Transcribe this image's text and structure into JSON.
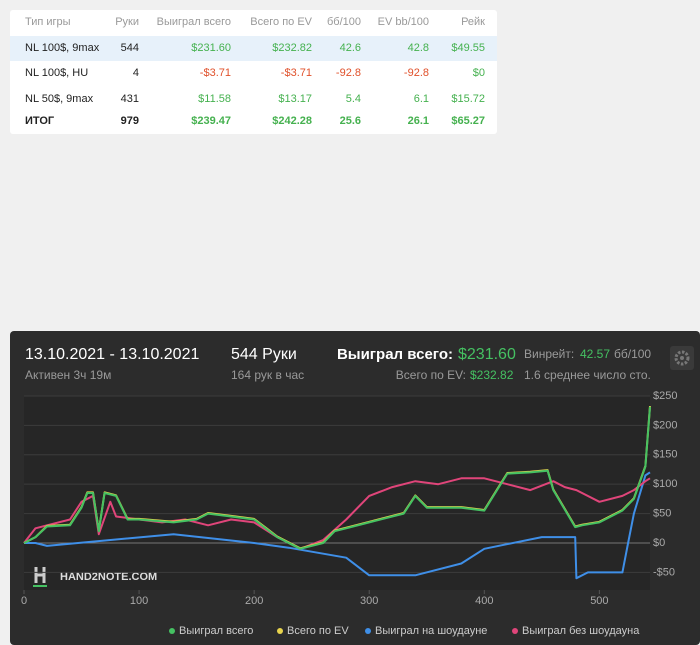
{
  "table": {
    "header": [
      "Тип игры",
      "Руки",
      "Выиграл всего",
      "Всего по EV",
      "бб/100",
      "EV bb/100",
      "Рейк"
    ],
    "rows": [
      [
        "NL 100$, 9max",
        "544",
        "$231.60",
        "$232.82",
        "42.6",
        "42.8",
        "$49.55"
      ],
      [
        "NL 100$, HU",
        "4",
        "-$3.71",
        "-$3.71",
        "-92.8",
        "-92.8",
        "$0"
      ],
      [
        "NL 50$, 9max",
        "431",
        "$11.58",
        "$13.17",
        "5.4",
        "6.1",
        "$15.72"
      ]
    ],
    "total": [
      "ИТОГ",
      "979",
      "$239.47",
      "$242.28",
      "25.6",
      "26.1",
      "$65.27"
    ]
  },
  "panel": {
    "date": "13.10.2021 - 13.10.2021",
    "active": "Активен 3ч 19м",
    "hands": "544 Руки",
    "rate": "164 рук в час",
    "won_label": "Выиграл всего:",
    "won": "$231.60",
    "ev_label": "Всего по EV:",
    "ev": "$232.82",
    "winrate_label": "Винрейт:",
    "winrate": "42.57",
    "winrate_unit": "бб/100",
    "tables": "1.6 среднее число сто.",
    "watermark": "HAND2NOTE.COM"
  },
  "chart_data": {
    "type": "line",
    "xlim": [
      0,
      544
    ],
    "ylim": [
      -80,
      250
    ],
    "xticks": [
      0,
      100,
      200,
      300,
      400,
      500
    ],
    "yticks": [
      {
        "value": -50,
        "label": "-$50"
      },
      {
        "value": 0,
        "label": "$0"
      },
      {
        "value": 50,
        "label": "$50"
      },
      {
        "value": 100,
        "label": "$100"
      },
      {
        "value": 150,
        "label": "$150"
      },
      {
        "value": 200,
        "label": "$200"
      },
      {
        "value": 250,
        "label": "$250"
      }
    ],
    "grid": true,
    "series": [
      {
        "name": "Выиграл всего",
        "color": "#45c162",
        "x": [
          0,
          10,
          20,
          40,
          50,
          55,
          60,
          65,
          70,
          80,
          90,
          100,
          130,
          150,
          160,
          180,
          200,
          210,
          220,
          240,
          260,
          270,
          280,
          300,
          330,
          340,
          350,
          380,
          400,
          420,
          440,
          455,
          460,
          479,
          485,
          500,
          520,
          530,
          540,
          544
        ],
        "values": [
          0,
          10,
          28,
          30,
          60,
          85,
          85,
          20,
          85,
          80,
          40,
          40,
          35,
          40,
          50,
          45,
          40,
          25,
          10,
          -10,
          0,
          20,
          25,
          35,
          50,
          80,
          60,
          60,
          55,
          118,
          120,
          123,
          90,
          27,
          30,
          35,
          55,
          75,
          130,
          231.6
        ]
      },
      {
        "name": "Всего по EV",
        "color": "#e8d44d",
        "x": [
          0,
          10,
          20,
          40,
          50,
          55,
          60,
          65,
          70,
          80,
          90,
          100,
          130,
          150,
          160,
          180,
          200,
          210,
          220,
          240,
          260,
          270,
          280,
          300,
          330,
          340,
          350,
          380,
          400,
          420,
          440,
          455,
          460,
          479,
          485,
          500,
          520,
          530,
          540,
          544
        ],
        "values": [
          0,
          10,
          29,
          31,
          61,
          86,
          86,
          21,
          86,
          81,
          41,
          41,
          36,
          41,
          51,
          46,
          41,
          26,
          11,
          -9,
          1,
          21,
          26,
          36,
          51,
          81,
          61,
          61,
          56,
          119,
          121,
          124,
          91,
          28,
          31,
          36,
          56,
          76,
          131,
          232.82
        ]
      },
      {
        "name": "Выиграл на шоудауне",
        "color": "#3f8fe8",
        "x": [
          0,
          10,
          20,
          130,
          200,
          230,
          280,
          300,
          340,
          380,
          400,
          450,
          479,
          480,
          490,
          520,
          525,
          530,
          540,
          544
        ],
        "values": [
          0,
          0,
          -5,
          15,
          0,
          -8,
          -25,
          -55,
          -55,
          -35,
          -10,
          10,
          10,
          -60,
          -50,
          -50,
          0,
          50,
          115,
          120
        ]
      },
      {
        "name": "Выиграл без шоудауна",
        "color": "#e0457a",
        "x": [
          0,
          10,
          20,
          40,
          50,
          60,
          65,
          75,
          80,
          100,
          120,
          140,
          160,
          180,
          200,
          220,
          240,
          260,
          280,
          300,
          320,
          340,
          360,
          380,
          400,
          420,
          440,
          460,
          470,
          480,
          500,
          520,
          530,
          540,
          544
        ],
        "values": [
          0,
          25,
          30,
          40,
          70,
          80,
          15,
          70,
          45,
          40,
          35,
          40,
          30,
          40,
          35,
          10,
          -10,
          5,
          40,
          80,
          95,
          105,
          100,
          110,
          110,
          100,
          90,
          105,
          95,
          90,
          70,
          80,
          90,
          105,
          110
        ]
      }
    ]
  }
}
